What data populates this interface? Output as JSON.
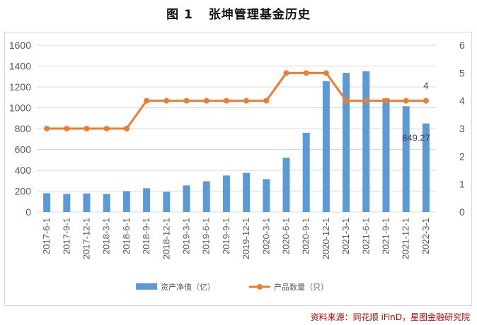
{
  "title": {
    "number": "图 1",
    "text": "张坤管理基金历史"
  },
  "source": "资料来源：同花顺 iFinD，星图金融研究院",
  "colors": {
    "bar": "#5b9bd5",
    "line": "#ed7d31",
    "grid": "#d9d9d9",
    "axis_text": "#595959"
  },
  "chart_data": {
    "type": "bar+line",
    "title": "张坤管理基金历史",
    "categories": [
      "2017-6-1",
      "2017-9-1",
      "2017-12-1",
      "2018-3-1",
      "2018-6-1",
      "2018-9-1",
      "2018-12-1",
      "2019-3-1",
      "2019-6-1",
      "2019-9-1",
      "2019-12-1",
      "2020-3-1",
      "2020-6-1",
      "2020-9-1",
      "2020-12-1",
      "2021-3-1",
      "2021-6-1",
      "2021-9-1",
      "2021-12-1",
      "2022-3-1"
    ],
    "series": [
      {
        "name": "资产净值（亿）",
        "type": "bar",
        "axis": "left",
        "values": [
          180,
          173,
          178,
          172,
          198,
          228,
          193,
          255,
          295,
          350,
          375,
          315,
          520,
          760,
          1255,
          1335,
          1350,
          1090,
          1015,
          849.27
        ]
      },
      {
        "name": "产品数量（只）",
        "type": "line",
        "axis": "right",
        "values": [
          3,
          3,
          3,
          3,
          3,
          4,
          4,
          4,
          4,
          4,
          4,
          4,
          5,
          5,
          5,
          4,
          4,
          4,
          4,
          4
        ]
      }
    ],
    "y_left": {
      "min": 0,
      "max": 1600,
      "ticks": [
        0,
        200,
        400,
        600,
        800,
        1000,
        1200,
        1400,
        1600
      ]
    },
    "y_right": {
      "min": 0,
      "max": 6,
      "ticks": [
        0,
        1,
        2,
        3,
        4,
        5,
        6
      ]
    },
    "data_labels": [
      {
        "series": "资产净值（亿）",
        "category": "2022-3-1",
        "text": "849.27"
      },
      {
        "series": "产品数量（只）",
        "category": "2022-3-1",
        "text": "4"
      }
    ],
    "legend": [
      "资产净值（亿）",
      "产品数量（只）"
    ],
    "legend_position": "bottom",
    "grid": true
  }
}
